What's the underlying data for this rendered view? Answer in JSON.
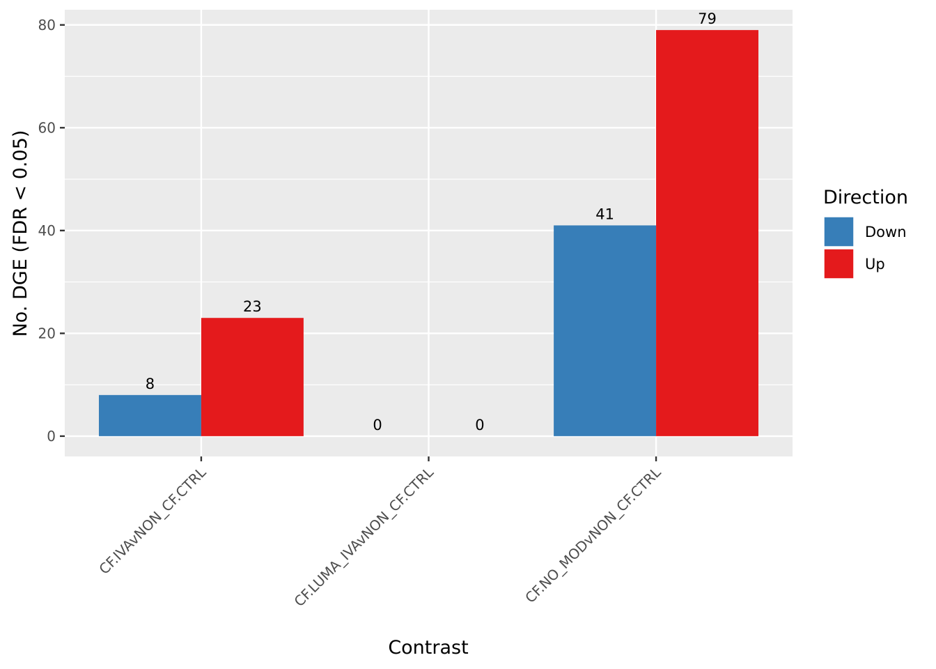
{
  "chart_data": {
    "type": "bar",
    "title": "",
    "xlabel": "Contrast",
    "ylabel": "No. DGE (FDR < 0.05)",
    "categories": [
      "CF.IVAvNON_CF.CTRL",
      "CF.LUMA_IVAvNON_CF.CTRL",
      "CF.NO_MODvNON_CF.CTRL"
    ],
    "series": [
      {
        "name": "Down",
        "color": "#377EB8",
        "values": [
          8,
          0,
          41
        ]
      },
      {
        "name": "Up",
        "color": "#E41A1C",
        "values": [
          23,
          0,
          79
        ]
      }
    ],
    "ylim": [
      -3.95,
      82.95
    ],
    "yticks": [
      0,
      20,
      40,
      60,
      80
    ],
    "grid": true,
    "legend": {
      "title": "Direction",
      "position": "right",
      "entries": [
        "Down",
        "Up"
      ]
    },
    "data_labels": true
  }
}
